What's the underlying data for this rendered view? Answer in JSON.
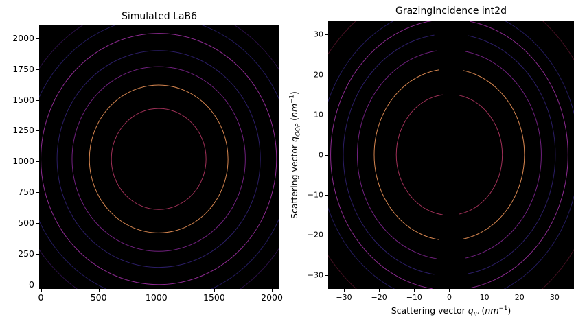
{
  "figure": {
    "background_color": "#ffffff",
    "plot_background_color": "#000000",
    "text_color": "#000000"
  },
  "left_plot": {
    "title": "Simulated LaB6",
    "xtick_labels": [
      "0",
      "500",
      "1000",
      "1500",
      "2000"
    ],
    "ytick_labels": [
      "0",
      "250",
      "500",
      "750",
      "1000",
      "1250",
      "1500",
      "1750",
      "2000"
    ]
  },
  "right_plot": {
    "title": "GrazingIncidence int2d",
    "xtick_labels": [
      "−30",
      "−20",
      "−10",
      "0",
      "10",
      "20",
      "30"
    ],
    "ytick_labels": [
      "−30",
      "−20",
      "−10",
      "0",
      "10",
      "20",
      "30"
    ],
    "xlabel": {
      "prefix": "Scattering vector ",
      "symbol": "q",
      "subscript": "IP",
      "unit_open": " (",
      "unit": "nm",
      "unit_exponent": "−1",
      "unit_close": ")"
    },
    "ylabel": {
      "prefix": "Scattering vector ",
      "symbol": "q",
      "subscript": "OOP",
      "unit_open": " (",
      "unit": "nm",
      "unit_exponent": "−1",
      "unit_close": ")"
    }
  },
  "chart_data": [
    {
      "type": "heatmap",
      "subtype": "contour-diffraction-rings",
      "title": "Simulated LaB6",
      "xlabel": "",
      "ylabel": "",
      "xlim": [
        -15,
        2065
      ],
      "ylim": [
        -35,
        2105
      ],
      "xticks": [
        0,
        500,
        1000,
        1500,
        2000
      ],
      "yticks": [
        0,
        250,
        500,
        750,
        1000,
        1250,
        1500,
        1750,
        2000
      ],
      "grid": false,
      "legend": false,
      "background": "#000000",
      "ring_center": [
        1020,
        1020
      ],
      "rings": [
        {
          "radius": 410,
          "color": "#a03058"
        },
        {
          "radius": 600,
          "color": "#d5854f"
        },
        {
          "radius": 750,
          "color": "#71207f"
        },
        {
          "radius": 880,
          "color": "#2b1d66"
        },
        {
          "radius": 1020,
          "color": "#8d2a91"
        },
        {
          "radius": 1150,
          "color": "#231a5c"
        },
        {
          "radius": 1270,
          "color": "#2a0f45"
        }
      ]
    },
    {
      "type": "heatmap",
      "subtype": "contour-diffraction-rings",
      "title": "GrazingIncidence int2d",
      "xlabel": "Scattering vector q_IP (nm^-1)",
      "ylabel": "Scattering vector q_OOP (nm^-1)",
      "xlim": [
        -34.5,
        35.5
      ],
      "ylim": [
        -33.5,
        33.5
      ],
      "xticks": [
        -30,
        -20,
        -10,
        0,
        10,
        20,
        30
      ],
      "yticks": [
        -30,
        -20,
        -10,
        0,
        10,
        20,
        30
      ],
      "grid": false,
      "legend": false,
      "background": "#000000",
      "ring_center": [
        0,
        0
      ],
      "rings": [
        {
          "radius": 15.1,
          "color": "#a03058"
        },
        {
          "radius": 21.4,
          "color": "#d5854f"
        },
        {
          "radius": 26.2,
          "color": "#71207f"
        },
        {
          "radius": 30.2,
          "color": "#2b1d66"
        },
        {
          "radius": 33.8,
          "color": "#8d2a91"
        },
        {
          "radius": 37.0,
          "color": "#231a5c"
        },
        {
          "radius": 42.7,
          "color": "#451022"
        }
      ],
      "missing_wedge": {
        "axis": "vertical",
        "halfwidth_slope": 0.16,
        "center_offset_x": 0.5
      }
    }
  ]
}
